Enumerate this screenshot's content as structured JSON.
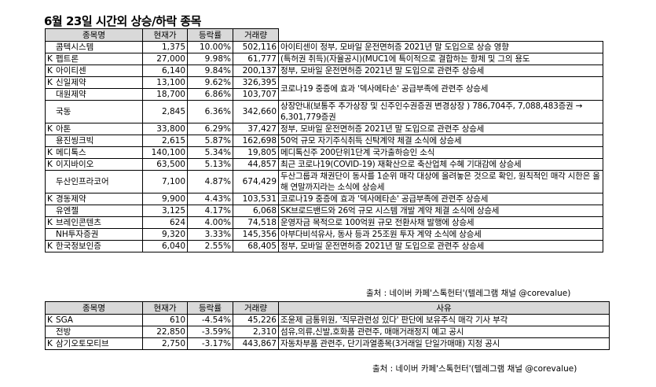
{
  "title": "6월 23일  시간외 상승/하락 종목",
  "rise_table": {
    "headers": [
      "종목명",
      "현재가",
      "등락률",
      "거래량",
      ""
    ],
    "rows": [
      {
        "mark": "",
        "name": "콤텍시스템",
        "price": "1,375",
        "change": "10.00%",
        "volume": "502,116",
        "reason": "아이티센이 정부, 모바일 운전면허증 2021년 말 도입으로 상승 영향"
      },
      {
        "mark": "K",
        "name": "펩트론",
        "price": "27,000",
        "change": "9.98%",
        "volume": "61,777",
        "reason": "(특허권 취득)(자율공시)(MUC1에 특이적으로 결합하는 항체 및 그의 용도"
      },
      {
        "mark": "K",
        "name": "아이티센",
        "price": "6,140",
        "change": "9.84%",
        "volume": "200,137",
        "reason": "정부, 모바일 운전면허증 2021년 말 도입으로 관련주 상승세"
      },
      {
        "mark": "K",
        "name": "신일제약",
        "price": "13,100",
        "change": "9.62%",
        "volume": "326,395",
        "reason": "코로나19 중증에 효과 '덱사메타손' 공급부족에 관련주 상승세"
      },
      {
        "mark": "",
        "name": "대원제약",
        "price": "18,700",
        "change": "6.86%",
        "volume": "103,707",
        "reason": ""
      },
      {
        "mark": "",
        "name": "국동",
        "price": "2,845",
        "change": "6.36%",
        "volume": "342,660",
        "reason": "상장안내(보통주 추가상장 및 신주인수권증권 변경상장 ) 786,704주, 7,088,483증권 → 6,301,779증권"
      },
      {
        "mark": "K",
        "name": "아톤",
        "price": "33,800",
        "change": "6.29%",
        "volume": "37,427",
        "reason": "정부, 모바일 운전면허증 2021년 말 도입으로 관련주 상승세"
      },
      {
        "mark": "",
        "name": "용진씽크빅",
        "price": "2,615",
        "change": "5.87%",
        "volume": "162,698",
        "reason": "50억 규모 자기주식취득 신탁계약 체결 소식에 상승세"
      },
      {
        "mark": "K",
        "name": "메디톡스",
        "price": "140,100",
        "change": "5.34%",
        "volume": "19,805",
        "reason": "메디톡신주 200단위1단계 국가출하승인 소식"
      },
      {
        "mark": "K",
        "name": "이지바이오",
        "price": "63,500",
        "change": "5.13%",
        "volume": "44,857",
        "reason": "최근 코로나19(COVID-19) 재확산으로 축산업체 수혜 기대감에 상승세"
      },
      {
        "mark": "",
        "name": "두산인프라코어",
        "price": "7,100",
        "change": "4.87%",
        "volume": "674,429",
        "reason": "두산그룹과 채권단이 동사를 1순위 매각 대상에 올려놓은 것으로 확인, 원칙적인 매각 시한은 올해 연말까지라는 소식에 상승세"
      },
      {
        "mark": "K",
        "name": "경동제약",
        "price": "9,900",
        "change": "4.43%",
        "volume": "103,531",
        "reason": "코로나19 중증에 효과 '덱사메타손' 공급부족에 관련주 상승세"
      },
      {
        "mark": "",
        "name": "유엔젤",
        "price": "3,125",
        "change": "4.17%",
        "volume": "6,068",
        "reason": "SK브로드밴드와 26억 규모 시스템 개발 계약 체결 소식에 상승세"
      },
      {
        "mark": "K",
        "name": "브레인콘텐츠",
        "price": "624",
        "change": "4.00%",
        "volume": "74,518",
        "reason": "운영자금 목적으로 100억원 규모 전환사채 발행에 상승세"
      },
      {
        "mark": "",
        "name": "NH투자증권",
        "price": "9,320",
        "change": "3.33%",
        "volume": "145,356",
        "reason": "아부다비석유사, 동사 등과 25조원 투자 계약 소식에 상승세"
      },
      {
        "mark": "K",
        "name": "한국정보인증",
        "price": "6,040",
        "change": "2.55%",
        "volume": "68,405",
        "reason": "정부, 모바일 운전면허증 2021년 말 도입으로 관련주 상승세"
      }
    ],
    "source": "출처 : 네이버 카페'스톡헌터'(텔레그램 채널 @corevalue)"
  },
  "fall_table": {
    "headers": [
      "종목명",
      "현재가",
      "등락률",
      "거래량",
      "사유"
    ],
    "rows": [
      {
        "mark": "K",
        "name": "SGA",
        "price": "610",
        "change": "-4.54%",
        "volume": "45,226",
        "reason": "조윤제 금통위원, '직무관련성 있다' 판단에 보유주식 매각 기사 부각"
      },
      {
        "mark": "",
        "name": "전방",
        "price": "22,850",
        "change": "-3.59%",
        "volume": "2,310",
        "reason": "섬유,의류,신발,호화품 관련주, 매매거래정지 예고 공시"
      },
      {
        "mark": "K",
        "name": "삼기오토모티브",
        "price": "2,750",
        "change": "-3.17%",
        "volume": "443,867",
        "reason": "자동차부품 관련주, 단기과열종목(3거래일 단일가매매) 지정 공시"
      }
    ],
    "source": "출처 : 네이버 카페'스톡헌터'(텔레그램 채널 @corevalue)"
  }
}
